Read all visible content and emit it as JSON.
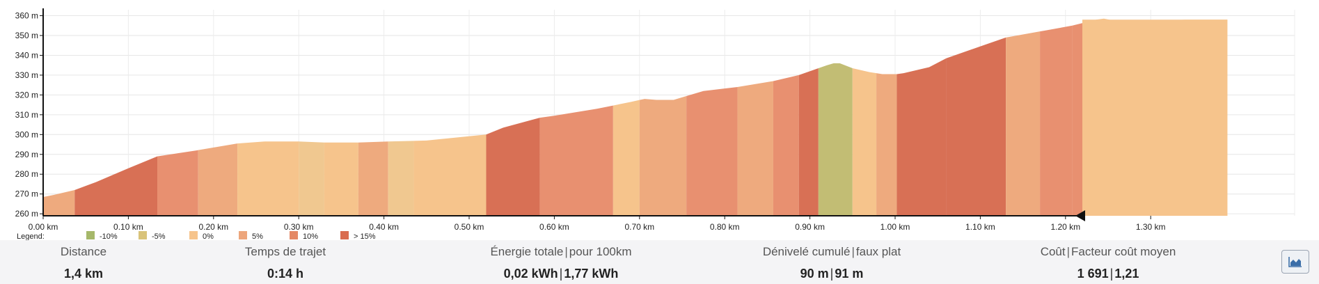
{
  "chart_data": {
    "type": "area",
    "xlabel": "",
    "ylabel": "",
    "x_unit": "km",
    "y_unit": "m",
    "xlim": [
      0,
      1.4
    ],
    "ylim": [
      259,
      363
    ],
    "x_ticks": [
      "0.00 km",
      "0.10 km",
      "0.20 km",
      "0.30 km",
      "0.40 km",
      "0.50 km",
      "0.60 km",
      "0.70 km",
      "0.80 km",
      "0.90 km",
      "1.00 km",
      "1.10 km",
      "1.20 km",
      "1.30 km"
    ],
    "x_tick_values": [
      0,
      0.1,
      0.2,
      0.3,
      0.4,
      0.5,
      0.6,
      0.7,
      0.8,
      0.9,
      1.0,
      1.1,
      1.2,
      1.3
    ],
    "y_ticks": [
      "260 m",
      "270 m",
      "280 m",
      "290 m",
      "300 m",
      "310 m",
      "320 m",
      "330 m",
      "340 m",
      "350 m",
      "360 m"
    ],
    "y_tick_values": [
      260,
      270,
      280,
      290,
      300,
      310,
      320,
      330,
      340,
      350,
      360
    ],
    "grid": true,
    "profile": [
      [
        0.0,
        268.5
      ],
      [
        0.012,
        269.5
      ],
      [
        0.037,
        272
      ],
      [
        0.062,
        276
      ],
      [
        0.1,
        283
      ],
      [
        0.134,
        289
      ],
      [
        0.18,
        292
      ],
      [
        0.228,
        295.5
      ],
      [
        0.26,
        296.5
      ],
      [
        0.3,
        296.5
      ],
      [
        0.33,
        296
      ],
      [
        0.37,
        296
      ],
      [
        0.405,
        296.5
      ],
      [
        0.45,
        297
      ],
      [
        0.52,
        300
      ],
      [
        0.54,
        303.5
      ],
      [
        0.583,
        308.5
      ],
      [
        0.6,
        309.5
      ],
      [
        0.65,
        313
      ],
      [
        0.69,
        316.5
      ],
      [
        0.706,
        318
      ],
      [
        0.72,
        317.5
      ],
      [
        0.74,
        317.5
      ],
      [
        0.775,
        322
      ],
      [
        0.815,
        324
      ],
      [
        0.857,
        327
      ],
      [
        0.887,
        330
      ],
      [
        0.91,
        333.5
      ],
      [
        0.92,
        335
      ],
      [
        0.928,
        336
      ],
      [
        0.935,
        336
      ],
      [
        0.95,
        333.5
      ],
      [
        0.97,
        331.5
      ],
      [
        0.985,
        330.5
      ],
      [
        1.002,
        330.5
      ],
      [
        1.01,
        331
      ],
      [
        1.04,
        334
      ],
      [
        1.06,
        338.5
      ],
      [
        1.09,
        343
      ],
      [
        1.1,
        344.5
      ],
      [
        1.13,
        349
      ],
      [
        1.176,
        352.5
      ],
      [
        1.208,
        355
      ],
      [
        1.236,
        358
      ],
      [
        1.245,
        358.5
      ],
      [
        1.27,
        356.5
      ],
      [
        1.34,
        358
      ],
      [
        1.39,
        358
      ]
    ],
    "segments": [
      {
        "from": 0.0,
        "to": 0.037,
        "grade": "5%"
      },
      {
        "from": 0.037,
        "to": 0.134,
        "grade": "> 15%"
      },
      {
        "from": 0.134,
        "to": 0.182,
        "grade": "10%"
      },
      {
        "from": 0.182,
        "to": 0.228,
        "grade": "5%"
      },
      {
        "from": 0.228,
        "to": 0.3,
        "grade": "0%"
      },
      {
        "from": 0.3,
        "to": 0.33,
        "grade": "-5%"
      },
      {
        "from": 0.33,
        "to": 0.37,
        "grade": "0%"
      },
      {
        "from": 0.37,
        "to": 0.405,
        "grade": "5%"
      },
      {
        "from": 0.405,
        "to": 0.435,
        "grade": "-5%"
      },
      {
        "from": 0.435,
        "to": 0.52,
        "grade": "0%"
      },
      {
        "from": 0.52,
        "to": 0.583,
        "grade": "> 15%"
      },
      {
        "from": 0.583,
        "to": 0.669,
        "grade": "10%"
      },
      {
        "from": 0.669,
        "to": 0.7,
        "grade": "0%"
      },
      {
        "from": 0.7,
        "to": 0.755,
        "grade": "5%"
      },
      {
        "from": 0.755,
        "to": 0.815,
        "grade": "10%"
      },
      {
        "from": 0.815,
        "to": 0.857,
        "grade": "5%"
      },
      {
        "from": 0.857,
        "to": 0.887,
        "grade": "10%"
      },
      {
        "from": 0.887,
        "to": 0.91,
        "grade": "> 15%"
      },
      {
        "from": 0.91,
        "to": 0.95,
        "grade": "-10%"
      },
      {
        "from": 0.95,
        "to": 0.978,
        "grade": "0%"
      },
      {
        "from": 0.978,
        "to": 1.002,
        "grade": "5%"
      },
      {
        "from": 1.002,
        "to": 1.06,
        "grade": "> 15%"
      },
      {
        "from": 1.06,
        "to": 1.13,
        "grade": "> 15%"
      },
      {
        "from": 1.13,
        "to": 1.17,
        "grade": "5%"
      },
      {
        "from": 1.17,
        "to": 1.208,
        "grade": "10%"
      },
      {
        "from": 1.208,
        "to": 1.236,
        "grade": "10%"
      },
      {
        "from": 1.236,
        "to": 1.39,
        "grade": "0%"
      }
    ],
    "legend": {
      "title": "Legend:",
      "placement": "bottom-left",
      "items": [
        {
          "label": "-10%",
          "color": "#a6b86a"
        },
        {
          "label": "-5%",
          "color": "#d9c37a"
        },
        {
          "label": "0%",
          "color": "#f6c48c"
        },
        {
          "label": "5%",
          "color": "#eda67c"
        },
        {
          "label": "10%",
          "color": "#e48966"
        },
        {
          "label": "> 15%",
          "color": "#d96c4f"
        }
      ]
    },
    "fill_colors": {
      "-10%": "#c2bd74",
      "-5%": "#f0c890",
      "0%": "#f6c48c",
      "5%": "#eeaa7e",
      "10%": "#e89070",
      "> 15%": "#d87055"
    }
  },
  "stats": [
    {
      "label_main": "Distance",
      "label_extra": "",
      "value_main": "1,4 km",
      "value_extra": ""
    },
    {
      "label_main": "Temps de trajet",
      "label_extra": "",
      "value_main": "0:14 h",
      "value_extra": ""
    },
    {
      "label_main": "Énergie totale",
      "label_extra": "pour 100km",
      "value_main": "0,02 kWh",
      "value_extra": "1,77 kWh"
    },
    {
      "label_main": "Dénivelé cumulé",
      "label_extra": "faux plat",
      "value_main": "90 m",
      "value_extra": "91 m"
    },
    {
      "label_main": "Coût",
      "label_extra": "Facteur coût moyen",
      "value_main": "1 691",
      "value_extra": "1,21"
    }
  ],
  "chart_button": {
    "icon": "area-chart-icon",
    "color": "#3b6ea8"
  }
}
